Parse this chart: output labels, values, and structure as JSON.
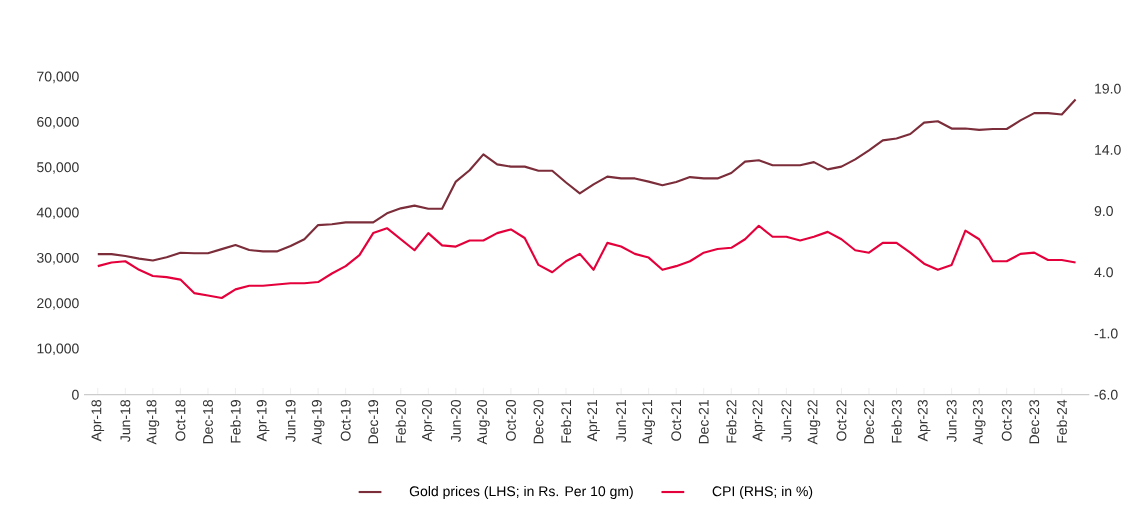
{
  "chart_data": {
    "type": "line",
    "categories": [
      "Apr-18",
      null,
      "Jun-18",
      null,
      "Aug-18",
      null,
      "Oct-18",
      null,
      "Dec-18",
      null,
      "Feb-19",
      null,
      "Apr-19",
      null,
      "Jun-19",
      null,
      "Aug-19",
      null,
      "Oct-19",
      null,
      "Dec-19",
      null,
      "Feb-20",
      null,
      "Apr-20",
      null,
      "Jun-20",
      null,
      "Aug-20",
      null,
      "Oct-20",
      null,
      "Dec-20",
      null,
      "Feb-21",
      null,
      "Apr-21",
      null,
      "Jun-21",
      null,
      "Aug-21",
      null,
      "Oct-21",
      null,
      "Dec-21",
      null,
      "Feb-22",
      null,
      "Apr-22",
      null,
      "Jun-22",
      null,
      "Aug-22",
      null,
      "Oct-22",
      null,
      "Dec-22",
      null,
      "Feb-23",
      null,
      "Apr-23",
      null,
      "Jun-23",
      null,
      "Aug-23",
      null,
      "Oct-23",
      null,
      "Dec-23",
      null,
      "Feb-24",
      null
    ],
    "series": [
      {
        "name": "Gold prices (LHS; in Rs. Per 10 gm)",
        "color": "#7b2d3a",
        "values": [
          31000,
          31000,
          30600,
          30000,
          29600,
          30300,
          31300,
          31200,
          31200,
          32100,
          33000,
          31900,
          31600,
          31600,
          32800,
          34300,
          37400,
          37600,
          38000,
          38000,
          38000,
          40000,
          41100,
          41700,
          41000,
          41000,
          47000,
          49500,
          53000,
          50800,
          50300,
          50300,
          49400,
          49400,
          46800,
          44400,
          46400,
          48100,
          47700,
          47700,
          47000,
          46200,
          46900,
          48000,
          47700,
          47700,
          48900,
          51400,
          51700,
          50600,
          50600,
          50600,
          51300,
          49700,
          50300,
          51900,
          53900,
          56100,
          56500,
          57500,
          60000,
          60300,
          58700,
          58700,
          58400,
          58600,
          58600,
          60500,
          62100,
          62100,
          61800,
          65100
        ]
      },
      {
        "name": "CPI (RHS; in %)",
        "color": "#e4003b",
        "axis": "y2",
        "values": [
          4.5,
          4.8,
          4.9,
          4.2,
          3.7,
          3.6,
          3.4,
          2.3,
          2.1,
          1.9,
          2.6,
          2.9,
          2.9,
          3.0,
          3.1,
          3.1,
          3.2,
          3.9,
          4.5,
          5.4,
          7.2,
          7.6,
          6.7,
          5.8,
          7.2,
          6.2,
          6.1,
          6.6,
          6.6,
          7.2,
          7.5,
          6.8,
          4.6,
          4.0,
          4.9,
          5.5,
          4.2,
          6.4,
          6.1,
          5.5,
          5.2,
          4.2,
          4.5,
          4.9,
          5.6,
          5.9,
          6.0,
          6.7,
          7.8,
          6.9,
          6.9,
          6.6,
          6.9,
          7.3,
          6.7,
          5.8,
          5.6,
          6.4,
          6.4,
          5.6,
          4.7,
          4.2,
          4.6,
          7.4,
          6.7,
          4.9,
          4.9,
          5.5,
          5.6,
          5.0,
          5.0,
          4.8
        ]
      }
    ],
    "ylim": [
      0,
      70000
    ],
    "yticks": [
      0,
      {
        "value": 10000,
        "label": "10,000"
      },
      {
        "value": 20000,
        "label": "20,000"
      },
      {
        "value": 30000,
        "label": "30,000"
      },
      {
        "value": 40000,
        "label": "40,000"
      },
      {
        "value": 50000,
        "label": "50,000"
      },
      {
        "value": 60000,
        "label": "60,000"
      },
      {
        "value": 70000,
        "label": "70,000"
      }
    ],
    "y2lim": [
      -6,
      19
    ],
    "y2ticks": [
      {
        "value": -6,
        "label": "-6.0"
      },
      {
        "value": -1,
        "label": "-1.0"
      },
      {
        "value": 4,
        "label": "4.0"
      },
      {
        "value": 9,
        "label": "9.0"
      },
      {
        "value": 14,
        "label": "14.0"
      },
      {
        "value": 19,
        "label": "19.0"
      }
    ],
    "legend": "bottom"
  }
}
